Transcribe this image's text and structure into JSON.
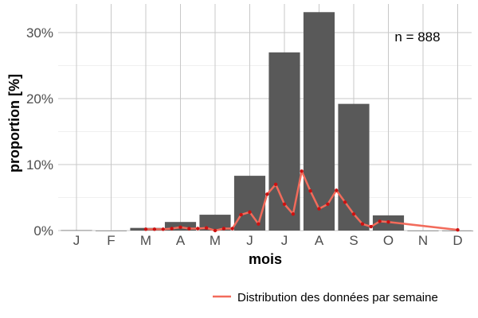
{
  "chart_data": {
    "type": "bar",
    "xlabel": "mois",
    "ylabel": "proportion [%]",
    "categories": [
      "J",
      "F",
      "M",
      "A",
      "M",
      "J",
      "J",
      "A",
      "S",
      "O",
      "N",
      "D"
    ],
    "ylim": [
      0,
      35
    ],
    "yticks": [
      0,
      10,
      20,
      30
    ],
    "ytick_labels": [
      "0%",
      "10%",
      "20%",
      "30%"
    ],
    "grid": true,
    "annotation": "n = 888",
    "series": [
      {
        "type": "bar",
        "values": [
          0.05,
          0,
          0.4,
          1.3,
          2.4,
          8.3,
          27.0,
          33.1,
          19.2,
          2.3,
          0,
          0
        ],
        "color": "#595959"
      },
      {
        "type": "line",
        "name": "Distribution des données par semaine",
        "color": "#f26b5b",
        "point_color": "#cc1111",
        "x": [
          3.0,
          3.25,
          3.5,
          3.75,
          4.0,
          4.25,
          4.5,
          4.75,
          5.0,
          5.25,
          5.5,
          5.75,
          6.0,
          6.25,
          6.5,
          6.75,
          7.0,
          7.25,
          7.5,
          7.75,
          8.0,
          8.25,
          8.5,
          8.75,
          9.0,
          9.25,
          9.5,
          9.75,
          10.0,
          12.0
        ],
        "values": [
          0.2,
          0.2,
          0.2,
          0.3,
          0.5,
          0.3,
          0.3,
          0.4,
          0.0,
          0.3,
          0.3,
          2.4,
          2.8,
          1.0,
          5.5,
          7.0,
          4.0,
          2.5,
          9.0,
          6.0,
          3.3,
          4.0,
          6.1,
          4.3,
          2.5,
          1.0,
          0.6,
          1.4,
          1.3,
          0.1
        ]
      }
    ],
    "legend": {
      "position": "bottom-right",
      "label": "Distribution des données par semaine"
    }
  }
}
